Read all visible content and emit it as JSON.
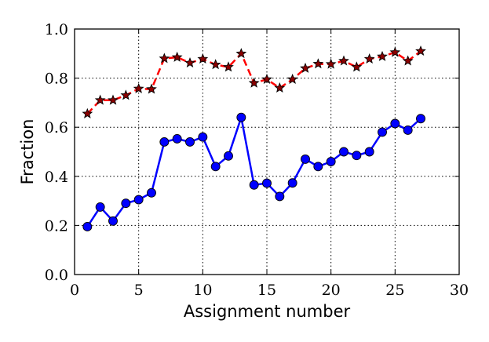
{
  "chart_data": {
    "type": "line",
    "title": "",
    "xlabel": "Assignment number",
    "ylabel": "Fraction",
    "xlim": [
      0,
      30
    ],
    "ylim": [
      0.0,
      1.0
    ],
    "xticks": [
      0,
      5,
      10,
      15,
      20,
      25,
      30
    ],
    "yticks": [
      0.0,
      0.2,
      0.4,
      0.6,
      0.8,
      1.0
    ],
    "xtick_labels": [
      "0",
      "5",
      "10",
      "15",
      "20",
      "25",
      "30"
    ],
    "ytick_labels": [
      "0.0",
      "0.2",
      "0.4",
      "0.6",
      "0.8",
      "1.0"
    ],
    "grid": true,
    "x": [
      1,
      2,
      3,
      4,
      5,
      6,
      7,
      8,
      9,
      10,
      11,
      12,
      13,
      14,
      15,
      16,
      17,
      18,
      19,
      20,
      21,
      22,
      23,
      24,
      25,
      26,
      27
    ],
    "series": [
      {
        "values": [
          0.655,
          0.71,
          0.71,
          0.73,
          0.757,
          0.755,
          0.88,
          0.885,
          0.862,
          0.878,
          0.855,
          0.845,
          0.9,
          0.78,
          0.795,
          0.76,
          0.795,
          0.84,
          0.858,
          0.857,
          0.87,
          0.845,
          0.878,
          0.888,
          0.905,
          0.87,
          0.91
        ],
        "color": "#ff0000",
        "line_style": "dashed",
        "marker": "star",
        "marker_fill": "#8b0000"
      },
      {
        "values": [
          0.195,
          0.275,
          0.218,
          0.29,
          0.305,
          0.333,
          0.54,
          0.553,
          0.54,
          0.56,
          0.44,
          0.483,
          0.64,
          0.365,
          0.372,
          0.318,
          0.373,
          0.47,
          0.44,
          0.46,
          0.5,
          0.485,
          0.5,
          0.58,
          0.615,
          0.588,
          0.635
        ],
        "color": "#0000ff",
        "line_style": "solid",
        "marker": "circle",
        "marker_fill": "#0000ff"
      }
    ]
  }
}
